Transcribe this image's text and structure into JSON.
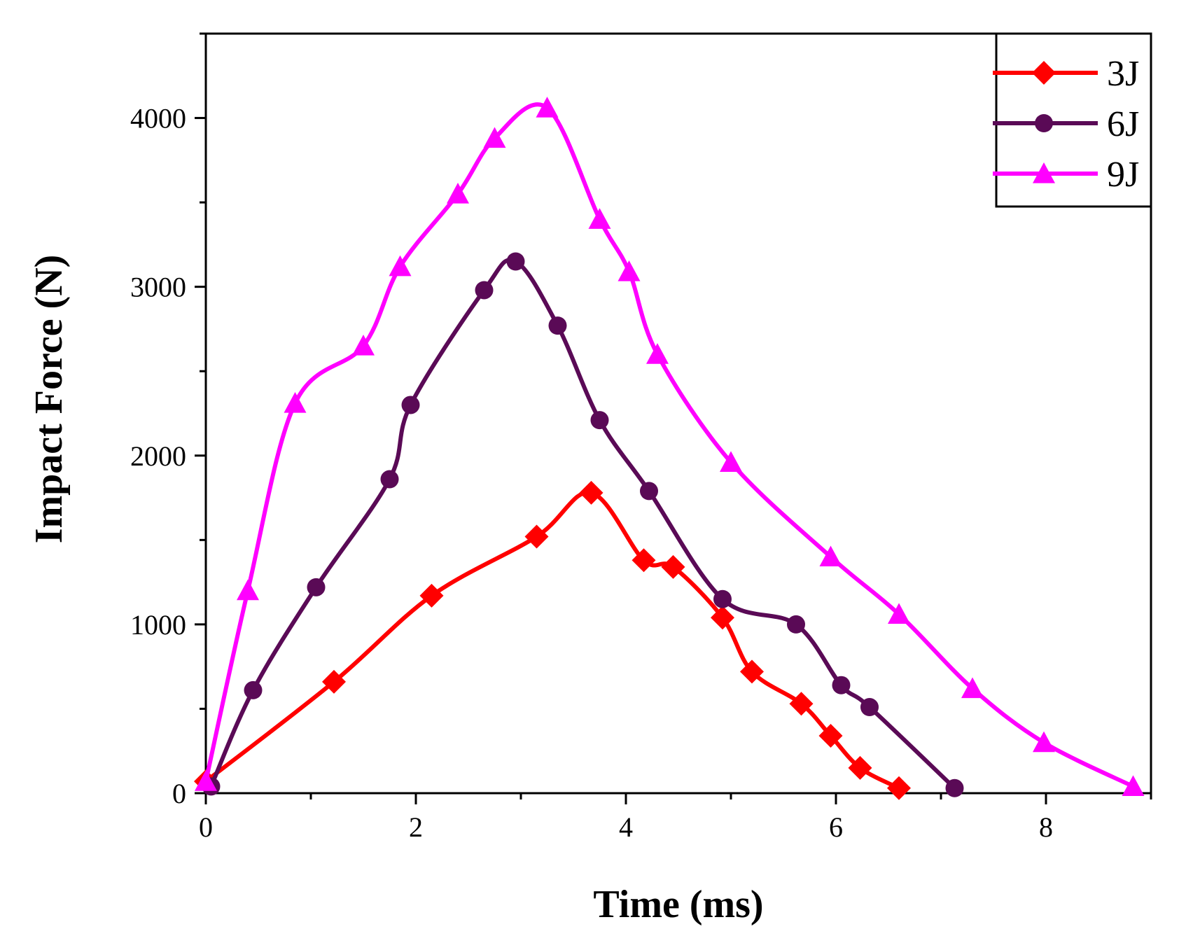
{
  "chart_data": {
    "type": "line",
    "title": "",
    "xlabel": "Time (ms)",
    "ylabel": "Impact Force (N)",
    "xlim": [
      0,
      9
    ],
    "ylim": [
      0,
      4500
    ],
    "xticks": [
      0,
      2,
      4,
      6,
      8
    ],
    "xtick_labels": [
      "0",
      "2",
      "4",
      "6",
      "8"
    ],
    "yticks": [
      0,
      1000,
      2000,
      3000,
      4000
    ],
    "ytick_labels": [
      "0",
      "1000",
      "2000",
      "3000",
      "4000"
    ],
    "grid": false,
    "legend_position": "top-right",
    "series": [
      {
        "name": "3J",
        "color": "#ff0000",
        "marker": "diamond",
        "points": [
          [
            0.0,
            70
          ],
          [
            1.22,
            660
          ],
          [
            2.15,
            1170
          ],
          [
            3.15,
            1520
          ],
          [
            3.67,
            1780
          ],
          [
            4.17,
            1380
          ],
          [
            4.45,
            1340
          ],
          [
            4.92,
            1040
          ],
          [
            5.2,
            720
          ],
          [
            5.67,
            530
          ],
          [
            5.95,
            340
          ],
          [
            6.23,
            150
          ],
          [
            6.6,
            30
          ]
        ]
      },
      {
        "name": "6J",
        "color": "#5a0a56",
        "marker": "circle",
        "points": [
          [
            0.05,
            40
          ],
          [
            0.45,
            610
          ],
          [
            1.05,
            1220
          ],
          [
            1.75,
            1860
          ],
          [
            1.95,
            2300
          ],
          [
            2.65,
            2980
          ],
          [
            2.95,
            3150
          ],
          [
            3.35,
            2770
          ],
          [
            3.75,
            2210
          ],
          [
            4.22,
            1790
          ],
          [
            4.92,
            1150
          ],
          [
            5.62,
            1000
          ],
          [
            6.05,
            640
          ],
          [
            6.32,
            510
          ],
          [
            7.13,
            30
          ]
        ]
      },
      {
        "name": "9J",
        "color": "#ff00ff",
        "marker": "triangle",
        "points": [
          [
            0.0,
            70
          ],
          [
            0.4,
            1200
          ],
          [
            0.85,
            2310
          ],
          [
            1.5,
            2650
          ],
          [
            1.85,
            3120
          ],
          [
            2.4,
            3550
          ],
          [
            2.75,
            3880
          ],
          [
            3.25,
            4060
          ],
          [
            3.75,
            3400
          ],
          [
            4.03,
            3090
          ],
          [
            4.3,
            2600
          ],
          [
            5.0,
            1960
          ],
          [
            5.95,
            1400
          ],
          [
            6.6,
            1060
          ],
          [
            7.3,
            620
          ],
          [
            7.98,
            300
          ],
          [
            8.83,
            40
          ]
        ]
      }
    ]
  }
}
